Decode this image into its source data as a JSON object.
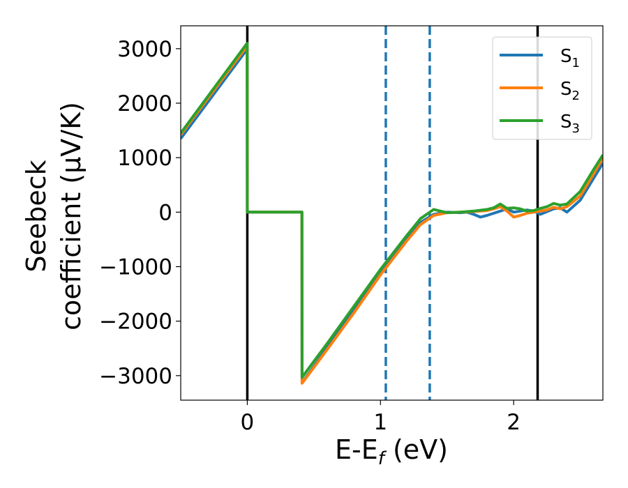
{
  "chart_data": {
    "type": "line",
    "xlabel": "E-E$_f$ (eV)",
    "xlabel_parts": {
      "main": "E-E",
      "sub": "f",
      "tail": " (eV)"
    },
    "ylabel_lines": [
      "Seebeck",
      "coefficient  (μV/K)"
    ],
    "xlim": [
      -0.5,
      2.67
    ],
    "ylim": [
      -3450,
      3420
    ],
    "x_ticks": [
      0,
      1,
      2
    ],
    "x_tick_labels": [
      "0",
      "1",
      "2"
    ],
    "y_ticks": [
      3000,
      2000,
      1000,
      0,
      -1000,
      -2000,
      -3000
    ],
    "y_tick_labels": [
      "3000",
      "2000",
      "1000",
      "0",
      "−1000",
      "−2000",
      "−3000"
    ],
    "grid": false,
    "legend_position": "top-right",
    "series": [
      {
        "name": "S1",
        "label_main": "S",
        "label_sub": "1",
        "color": "#1f77b4",
        "points": [
          [
            -0.5,
            1350
          ],
          [
            -0.001,
            2990
          ],
          [
            0.0,
            0
          ],
          [
            0.41,
            0
          ],
          [
            0.411,
            -3130
          ],
          [
            0.6,
            -2490
          ],
          [
            0.8,
            -1800
          ],
          [
            1.0,
            -1120
          ],
          [
            1.2,
            -470
          ],
          [
            1.3,
            -190
          ],
          [
            1.4,
            -40
          ],
          [
            1.5,
            0
          ],
          [
            1.6,
            -10
          ],
          [
            1.65,
            0
          ],
          [
            1.7,
            -40
          ],
          [
            1.75,
            -90
          ],
          [
            1.8,
            -60
          ],
          [
            1.85,
            -20
          ],
          [
            1.9,
            20
          ],
          [
            1.95,
            60
          ],
          [
            2.0,
            0
          ],
          [
            2.05,
            20
          ],
          [
            2.1,
            40
          ],
          [
            2.15,
            20
          ],
          [
            2.2,
            -40
          ],
          [
            2.25,
            10
          ],
          [
            2.3,
            60
          ],
          [
            2.35,
            80
          ],
          [
            2.4,
            0
          ],
          [
            2.5,
            220
          ],
          [
            2.6,
            620
          ],
          [
            2.67,
            900
          ]
        ]
      },
      {
        "name": "S2",
        "label_main": "S",
        "label_sub": "2",
        "color": "#ff7f0e",
        "points": [
          [
            -0.5,
            1420
          ],
          [
            -0.001,
            3050
          ],
          [
            0.0,
            0
          ],
          [
            0.41,
            0
          ],
          [
            0.411,
            -3140
          ],
          [
            0.6,
            -2520
          ],
          [
            0.8,
            -1850
          ],
          [
            1.0,
            -1150
          ],
          [
            1.2,
            -520
          ],
          [
            1.3,
            -230
          ],
          [
            1.4,
            -60
          ],
          [
            1.5,
            -10
          ],
          [
            1.6,
            0
          ],
          [
            1.7,
            10
          ],
          [
            1.8,
            30
          ],
          [
            1.85,
            60
          ],
          [
            1.9,
            100
          ],
          [
            1.95,
            20
          ],
          [
            2.0,
            -90
          ],
          [
            2.05,
            -60
          ],
          [
            2.1,
            -20
          ],
          [
            2.15,
            0
          ],
          [
            2.2,
            20
          ],
          [
            2.25,
            40
          ],
          [
            2.3,
            90
          ],
          [
            2.35,
            60
          ],
          [
            2.4,
            100
          ],
          [
            2.5,
            300
          ],
          [
            2.6,
            700
          ],
          [
            2.67,
            1000
          ]
        ]
      },
      {
        "name": "S3",
        "label_main": "S",
        "label_sub": "3",
        "color": "#2ca02c",
        "points": [
          [
            -0.5,
            1450
          ],
          [
            -0.001,
            3100
          ],
          [
            0.0,
            0
          ],
          [
            0.41,
            0
          ],
          [
            0.411,
            -3030
          ],
          [
            0.6,
            -2410
          ],
          [
            0.8,
            -1730
          ],
          [
            1.0,
            -1050
          ],
          [
            1.2,
            -420
          ],
          [
            1.3,
            -120
          ],
          [
            1.4,
            50
          ],
          [
            1.45,
            20
          ],
          [
            1.5,
            -10
          ],
          [
            1.6,
            0
          ],
          [
            1.7,
            20
          ],
          [
            1.8,
            50
          ],
          [
            1.85,
            80
          ],
          [
            1.9,
            150
          ],
          [
            1.95,
            70
          ],
          [
            2.0,
            80
          ],
          [
            2.05,
            60
          ],
          [
            2.1,
            20
          ],
          [
            2.15,
            30
          ],
          [
            2.2,
            70
          ],
          [
            2.25,
            100
          ],
          [
            2.3,
            160
          ],
          [
            2.35,
            130
          ],
          [
            2.4,
            150
          ],
          [
            2.5,
            380
          ],
          [
            2.6,
            780
          ],
          [
            2.67,
            1050
          ]
        ]
      }
    ],
    "vertical_lines": [
      {
        "x": 0.0,
        "style": "solid",
        "color": "#000000"
      },
      {
        "x": 2.18,
        "style": "solid",
        "color": "#000000"
      },
      {
        "x": 1.04,
        "style": "dashed",
        "color": "#1f77b4"
      },
      {
        "x": 1.37,
        "style": "dashed",
        "color": "#1f77b4"
      }
    ]
  }
}
